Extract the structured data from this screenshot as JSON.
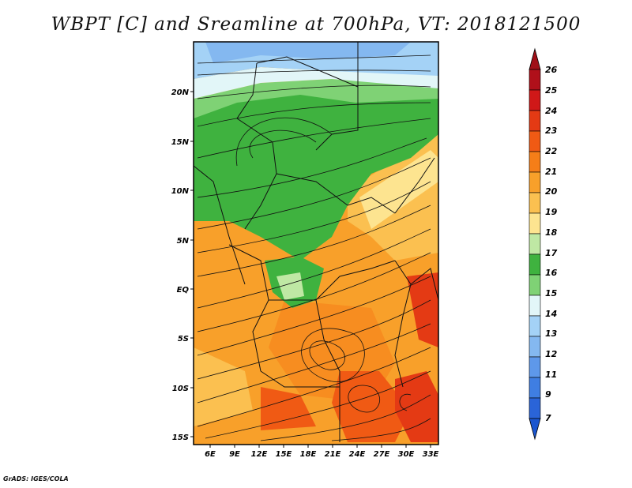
{
  "title": "WBPT [C] and Sreamline at 700hPa, VT: 2018121500",
  "credit": "GrADS: IGES/COLA",
  "lat_labels": [
    "20N",
    "15N",
    "10N",
    "5N",
    "EQ",
    "5S",
    "10S",
    "15S"
  ],
  "lon_labels": [
    "6E",
    "9E",
    "12E",
    "15E",
    "18E",
    "21E",
    "24E",
    "27E",
    "30E",
    "33E"
  ],
  "colorbar": {
    "labels": [
      "26",
      "25",
      "24",
      "23",
      "22",
      "21",
      "20",
      "19",
      "18",
      "17",
      "16",
      "15",
      "14",
      "13",
      "12",
      "11",
      "9",
      "7"
    ],
    "colors": [
      "#b0101a",
      "#d01818",
      "#e43a14",
      "#f05a14",
      "#f57e18",
      "#f8a02a",
      "#fbc050",
      "#fde490",
      "#bfe8a4",
      "#3fb23f",
      "#7fd275",
      "#e2f6f8",
      "#a4d2f6",
      "#84b8f0",
      "#5e98ea",
      "#3f7ee2",
      "#2a64d8"
    ],
    "top_arrow": "#a01018",
    "bottom_arrow": "#1a56d0"
  },
  "map": {
    "lon_min": 4,
    "lon_max": 33.5,
    "lat_min": -16.5,
    "lat_max": 25,
    "regions": [
      {
        "name": "blue-north",
        "wbpt": 13
      },
      {
        "name": "green-band",
        "wbpt": 17
      },
      {
        "name": "orange-south",
        "wbpt": 21
      },
      {
        "name": "red-hotspots",
        "wbpt": 23
      }
    ]
  }
}
